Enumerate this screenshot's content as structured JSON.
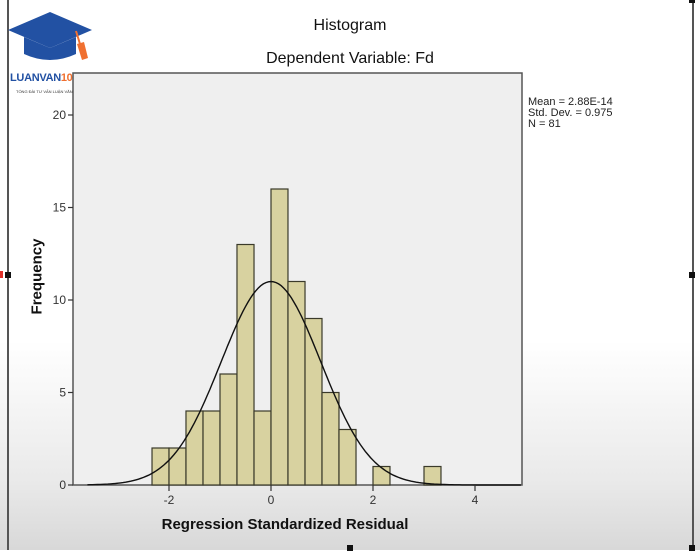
{
  "logo": {
    "brand_left": "LUANVAN",
    "brand_right": "1080",
    "tagline": "TỔNG ĐÀI TƯ VẤN LUẬN VĂN 1080"
  },
  "chart": {
    "title": "Histogram",
    "subtitle": "Dependent Variable: Fd",
    "xlabel": "Regression Standardized Residual",
    "ylabel": "Frequency",
    "stats": {
      "mean": "Mean = 2.88E-14",
      "std_dev": "Std. Dev. = 0.975",
      "n": "N = 81"
    }
  },
  "colors": {
    "bar_fill": "#d8d2a0",
    "bar_stroke": "#3a3a2a",
    "plot_bg": "#efefef",
    "curve": "#111111"
  },
  "chart_data": {
    "type": "bar",
    "title": "Histogram",
    "subtitle": "Dependent Variable: Fd",
    "xlabel": "Regression Standardized Residual",
    "ylabel": "Frequency",
    "bin_width": 0.333,
    "bins": [
      {
        "start": -2.333,
        "end": -2.0,
        "count": 2
      },
      {
        "start": -2.0,
        "end": -1.667,
        "count": 2
      },
      {
        "start": -1.667,
        "end": -1.333,
        "count": 4
      },
      {
        "start": -1.333,
        "end": -1.0,
        "count": 4
      },
      {
        "start": -1.0,
        "end": -0.667,
        "count": 6
      },
      {
        "start": -0.667,
        "end": -0.333,
        "count": 13
      },
      {
        "start": -0.333,
        "end": 0.0,
        "count": 4
      },
      {
        "start": 0.0,
        "end": 0.333,
        "count": 16
      },
      {
        "start": 0.333,
        "end": 0.667,
        "count": 11
      },
      {
        "start": 0.667,
        "end": 1.0,
        "count": 9
      },
      {
        "start": 1.0,
        "end": 1.333,
        "count": 5
      },
      {
        "start": 1.333,
        "end": 1.667,
        "count": 3
      },
      {
        "start": 2.0,
        "end": 2.333,
        "count": 1
      },
      {
        "start": 3.0,
        "end": 3.333,
        "count": 1
      }
    ],
    "normal_curve": {
      "mean": 0.0,
      "std_dev": 0.975,
      "n": 81,
      "peak_approx": 11
    },
    "x_ticks": [
      -2,
      0,
      2,
      4
    ],
    "y_ticks": [
      0,
      5,
      10,
      15,
      20
    ],
    "xlim": [
      -3.7,
      4.9
    ],
    "ylim": [
      0,
      22
    ],
    "grid": false,
    "legend": {
      "position": "right-top",
      "entries": [
        "Mean = 2.88E-14",
        "Std. Dev. = 0.975",
        "N = 81"
      ]
    }
  }
}
